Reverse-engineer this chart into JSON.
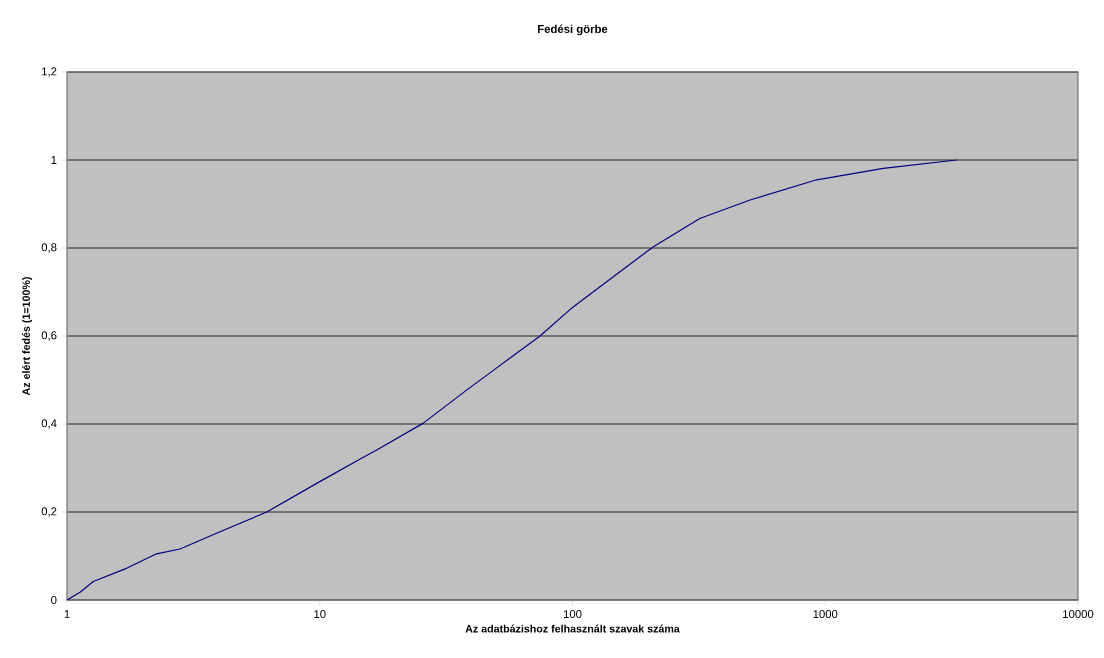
{
  "chart_data": {
    "type": "line",
    "title": "Fedési görbe",
    "xlabel": "Az adatbázishoz felhasznált szavak száma",
    "ylabel": "Az elért fedés (1=100%)",
    "log": "x",
    "grid": "y",
    "marker": "none",
    "line_style": "solid",
    "xlim": [
      1,
      10000
    ],
    "xticks": [
      1,
      10,
      100,
      1000,
      10000
    ],
    "ylim": [
      0,
      1.2
    ],
    "yticks": [
      0,
      {
        "value": 0.2,
        "label": "0,2"
      },
      {
        "value": 0.4,
        "label": "0,4"
      },
      {
        "value": 0.6,
        "label": "0,6"
      },
      {
        "value": 0.8,
        "label": "0,8"
      },
      1,
      {
        "value": 1.2,
        "label": "1,2"
      }
    ],
    "series": [
      {
        "color": "#000080",
        "x": [
          1,
          1.13,
          1.27,
          1.72,
          2.26,
          2.8,
          4.03,
          6.17,
          10,
          14.4,
          16.8,
          25.7,
          38.1,
          50,
          74.4,
          100,
          128.5,
          209,
          319,
          504,
          925,
          1698,
          3311
        ],
        "values": [
          0,
          0.018,
          0.042,
          0.072,
          0.105,
          0.116,
          0.155,
          0.2,
          0.269,
          0.32,
          0.341,
          0.402,
          0.477,
          0.527,
          0.6,
          0.665,
          0.712,
          0.803,
          0.867,
          0.909,
          0.955,
          0.981,
          1.0
        ]
      }
    ]
  }
}
